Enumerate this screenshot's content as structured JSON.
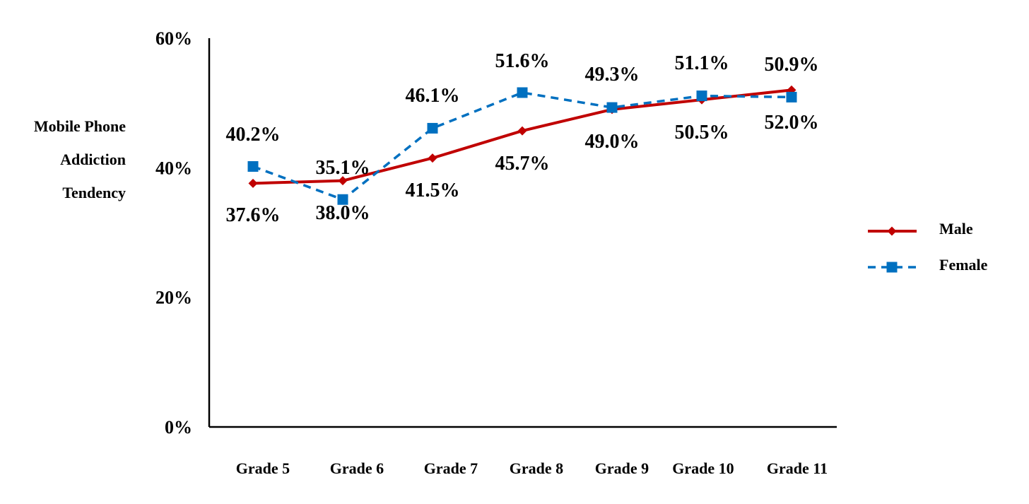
{
  "chart_data": {
    "type": "line",
    "title": "",
    "ylabel_lines": [
      "Mobile Phone",
      "Addiction",
      "Tendency"
    ],
    "xlabel": "",
    "categories": [
      "Grade 5",
      "Grade 6",
      "Grade 7",
      "Grade 8",
      "Grade 9",
      "Grade 10",
      "Grade 11"
    ],
    "yticks": [
      0,
      20,
      40,
      60
    ],
    "ytick_labels": [
      "0%",
      "20%",
      "40%",
      "60%"
    ],
    "ylim": [
      0,
      60
    ],
    "grid": false,
    "legend_position": "right",
    "series": [
      {
        "name": "Male",
        "color": "#C00000",
        "line_style": "solid",
        "marker": "diamond",
        "values": [
          37.6,
          38.0,
          41.5,
          45.7,
          49.0,
          50.5,
          52.0
        ],
        "labels": [
          "37.6%",
          "38.0%",
          "41.5%",
          "45.7%",
          "49.0%",
          "50.5%",
          "52.0%"
        ]
      },
      {
        "name": "Female",
        "color": "#0070C0",
        "line_style": "dashed",
        "marker": "square",
        "values": [
          40.2,
          35.1,
          46.1,
          51.6,
          49.3,
          51.1,
          50.9
        ],
        "labels": [
          "40.2%",
          "35.1%",
          "46.1%",
          "51.6%",
          "49.3%",
          "51.1%",
          "50.9%"
        ]
      }
    ]
  }
}
